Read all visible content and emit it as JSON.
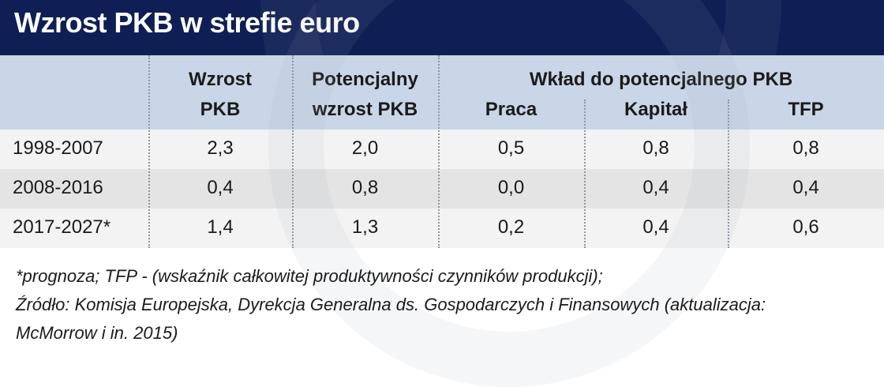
{
  "title": "Wzrost PKB w strefie euro",
  "colors": {
    "title_bar": "#0f1f55",
    "header_bg": "#c9d6e8",
    "row_light": "#f3f3f3",
    "row_dark": "#e4e4e4"
  },
  "chart_data": {
    "type": "table",
    "title": "Wzrost PKB w strefie euro",
    "group_header": "Wkład do potencjalnego PKB",
    "columns": [
      {
        "line1": "Wzrost",
        "line2": "PKB"
      },
      {
        "line1": "Potencjalny",
        "line2": "wzrost PKB"
      },
      {
        "line1": "",
        "line2": "Praca"
      },
      {
        "line1": "",
        "line2": "Kapitał"
      },
      {
        "line1": "",
        "line2": "TFP"
      }
    ],
    "rows": [
      {
        "period": "1998-2007",
        "values": [
          "2,3",
          "2,0",
          "0,5",
          "0,8",
          "0,8"
        ]
      },
      {
        "period": "2008-2016",
        "values": [
          "0,4",
          "0,8",
          "0,0",
          "0,4",
          "0,4"
        ]
      },
      {
        "period": "2017-2027*",
        "values": [
          "1,4",
          "1,3",
          "0,2",
          "0,4",
          "0,6"
        ]
      }
    ]
  },
  "footnote": {
    "line1": "*prognoza; TFP - (wskaźnik całkowitej produktywności czynników produkcji);",
    "line2": "Źródło: Komisja Europejska, Dyrekcja Generalna ds. Gospodarczych i Finansowych (aktualizacja:",
    "line3": "McMorrow i in. 2015)"
  }
}
